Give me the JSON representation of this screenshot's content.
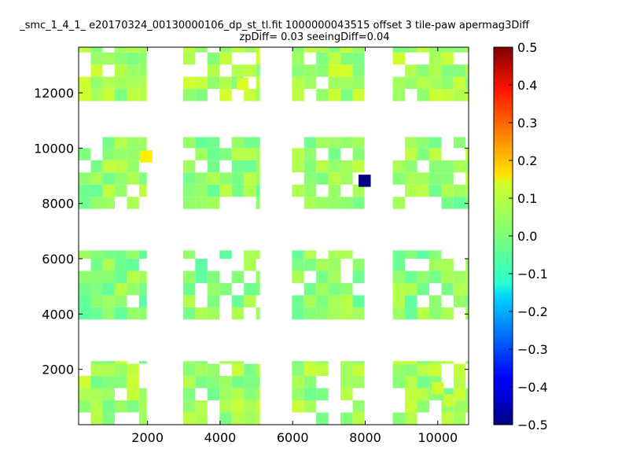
{
  "chart_data": {
    "type": "heatmap",
    "title_line1": "_smc_1_4_1_ e20170324_00130000106_dp_st_tl.fit 1000000043515 offset 3 tile-paw apermag3Diff",
    "title_line2": "zpDiff= 0.03 seeingDiff=0.04",
    "xlabel": "",
    "ylabel": "",
    "xlim": [
      100,
      10850
    ],
    "ylim": [
      0,
      13650
    ],
    "xticks": [
      2000,
      4000,
      6000,
      8000,
      10000
    ],
    "yticks": [
      2000,
      4000,
      6000,
      8000,
      10000,
      12000
    ],
    "colorscale": "jet",
    "zlim": [
      -0.5,
      0.5
    ],
    "colorbar_ticks": [
      "0.5",
      "0.4",
      "0.3",
      "0.2",
      "0.1",
      "0.0",
      "−0.1",
      "−0.2",
      "−0.3",
      "−0.4",
      "−0.5"
    ],
    "cell_width": 335,
    "cell_height": 440,
    "outlier_cells": [
      {
        "x": 1965,
        "y": 9700,
        "value": 0.14
      },
      {
        "x": 7985,
        "y": 8820,
        "value": -0.5
      },
      {
        "x": 4620,
        "y": 12320,
        "value": 0.09
      },
      {
        "x": 10000,
        "y": 1320,
        "value": 0.08
      },
      {
        "x": 10320,
        "y": 880,
        "value": 0.07
      }
    ],
    "blocks": [
      {
        "x0": 100,
        "x1": 10850,
        "y0": 0,
        "y1": 2300,
        "value": 0.03
      },
      {
        "x0": 100,
        "x1": 10850,
        "y0": 3800,
        "y1": 6300,
        "value": 0.01
      },
      {
        "x0": 100,
        "x1": 10850,
        "y0": 7800,
        "y1": 10400,
        "value": 0.02
      },
      {
        "x0": 100,
        "x1": 10850,
        "y0": 11700,
        "y1": 13650,
        "value": 0.04
      }
    ]
  }
}
